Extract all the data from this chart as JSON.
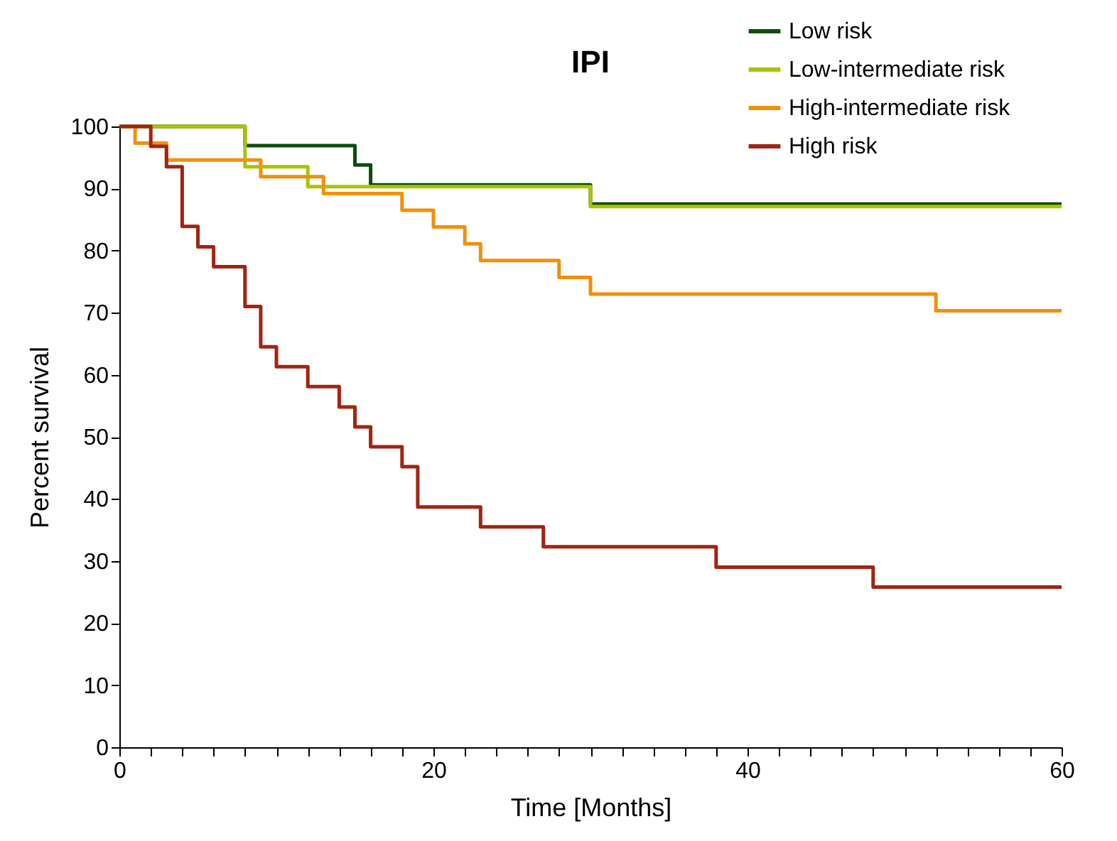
{
  "chart_data": {
    "type": "step",
    "title": "IPI",
    "xlabel": "Time [Months]",
    "ylabel": "Percent survival",
    "xlim": [
      0,
      60
    ],
    "ylim": [
      0,
      100
    ],
    "xticks": [
      0,
      {
        "value": 2,
        "label": null
      },
      {
        "value": 4,
        "label": null
      },
      {
        "value": 6,
        "label": null
      },
      {
        "value": 8,
        "label": null
      },
      {
        "value": 10,
        "label": null
      },
      {
        "value": 12,
        "label": null
      },
      {
        "value": 14,
        "label": null
      },
      {
        "value": 16,
        "label": null
      },
      {
        "value": 18,
        "label": null
      },
      20,
      {
        "value": 22,
        "label": null
      },
      {
        "value": 24,
        "label": null
      },
      {
        "value": 26,
        "label": null
      },
      {
        "value": 28,
        "label": null
      },
      {
        "value": 30,
        "label": null
      },
      {
        "value": 32,
        "label": null
      },
      {
        "value": 34,
        "label": null
      },
      {
        "value": 36,
        "label": null
      },
      {
        "value": 38,
        "label": null
      },
      40,
      {
        "value": 42,
        "label": null
      },
      {
        "value": 44,
        "label": null
      },
      {
        "value": 46,
        "label": null
      },
      {
        "value": 48,
        "label": null
      },
      {
        "value": 50,
        "label": null
      },
      {
        "value": 52,
        "label": null
      },
      {
        "value": 54,
        "label": null
      },
      {
        "value": 56,
        "label": null
      },
      {
        "value": 58,
        "label": null
      },
      60
    ],
    "yticks": [
      0,
      10,
      20,
      30,
      40,
      50,
      60,
      70,
      80,
      90,
      100
    ],
    "grid": false,
    "legend": "top right",
    "marker": "none",
    "line_style": "solid",
    "series": [
      {
        "name": "Low risk",
        "color": "#0b4d0b",
        "x": [
          0,
          8,
          15,
          16,
          30,
          60
        ],
        "values": [
          100,
          96.9,
          93.8,
          90.6,
          87.5,
          87.5
        ]
      },
      {
        "name": "Low-intermediate risk",
        "color": "#a9c300",
        "x": [
          0,
          8,
          12,
          30,
          60
        ],
        "values": [
          100,
          93.5,
          90.3,
          87.1,
          87.1
        ]
      },
      {
        "name": "High-intermediate risk",
        "color": "#f0900c",
        "x": [
          0,
          1,
          3,
          9,
          13,
          18,
          20,
          22,
          23,
          28,
          30,
          52,
          60
        ],
        "values": [
          100,
          97.3,
          94.6,
          91.9,
          89.2,
          86.5,
          83.8,
          81.1,
          78.4,
          75.7,
          73.0,
          70.3,
          70.3
        ]
      },
      {
        "name": "High risk",
        "color": "#a02512",
        "x": [
          0,
          2,
          3,
          4,
          5,
          6,
          8,
          9,
          10,
          12,
          14,
          15,
          16,
          18,
          19,
          23,
          27,
          38,
          48,
          60
        ],
        "values": [
          100,
          96.8,
          93.5,
          83.9,
          80.6,
          77.4,
          71.0,
          64.5,
          61.3,
          58.1,
          54.8,
          51.6,
          48.4,
          45.2,
          38.7,
          35.5,
          32.3,
          29.0,
          25.8,
          25.8
        ]
      }
    ]
  }
}
